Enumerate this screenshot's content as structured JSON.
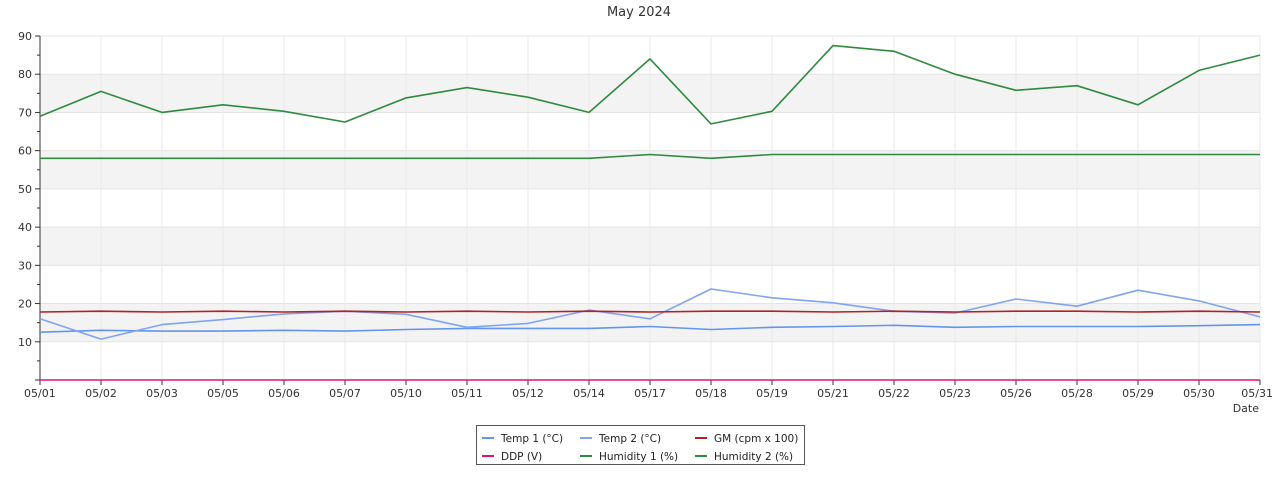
{
  "chart_data": {
    "type": "line",
    "title": "May 2024",
    "xlabel": "Date",
    "ylabel": "",
    "ylim": [
      0,
      90
    ],
    "yticks": [
      10,
      20,
      30,
      40,
      50,
      60,
      70,
      80,
      90
    ],
    "grid": true,
    "legend_position": "bottom-center",
    "categories": [
      "05/01",
      "05/02",
      "05/03",
      "05/05",
      "05/06",
      "05/07",
      "05/10",
      "05/11",
      "05/12",
      "05/14",
      "05/17",
      "05/18",
      "05/19",
      "05/21",
      "05/22",
      "05/23",
      "05/26",
      "05/28",
      "05/29",
      "05/30",
      "05/31"
    ],
    "series": [
      {
        "name": "Temp 1 (°C)",
        "color": "#6495ed",
        "values": [
          12.5,
          13,
          12.8,
          12.8,
          13,
          12.8,
          13.2,
          13.5,
          13.5,
          13.5,
          14,
          13.2,
          13.8,
          14,
          14.3,
          13.8,
          14,
          14,
          14,
          14.2,
          14.5
        ]
      },
      {
        "name": "Temp 2 (°C)",
        "color": "#7fa4f0",
        "values": [
          16,
          10.7,
          14.5,
          15.8,
          17.3,
          18,
          17.2,
          13.8,
          14.8,
          18.3,
          16,
          23.8,
          21.5,
          20.2,
          18,
          17.5,
          21.2,
          19.3,
          23.5,
          20.7,
          16.5
        ]
      },
      {
        "name": "GM (cpm x 100)",
        "color": "#b22222",
        "values": [
          17.8,
          18,
          17.8,
          18,
          17.8,
          18,
          17.8,
          18,
          17.8,
          18,
          17.8,
          18,
          18,
          17.8,
          18,
          17.8,
          18,
          18,
          17.8,
          18,
          17.8
        ]
      },
      {
        "name": "DDP (V)",
        "color": "#e0117f",
        "values": [
          0,
          0,
          0,
          0,
          0,
          0,
          0,
          0,
          0,
          0,
          0,
          0,
          0,
          0,
          0,
          0,
          0,
          0,
          0,
          0,
          0
        ]
      },
      {
        "name": "Humidity 1 (%)",
        "color": "#2e8b3e",
        "values": [
          69,
          75.5,
          70,
          72,
          70.3,
          67.5,
          73.8,
          76.5,
          74,
          70,
          84,
          67,
          70.3,
          87.5,
          86,
          80,
          75.8,
          77,
          72,
          81,
          85
        ]
      },
      {
        "name": "Humidity 2 (%)",
        "color": "#2e8b3e",
        "values": [
          58,
          58,
          58,
          58,
          58,
          58,
          58,
          58,
          58,
          58,
          59,
          58,
          59,
          59,
          59,
          59,
          59,
          59,
          59,
          59,
          59
        ]
      }
    ]
  }
}
